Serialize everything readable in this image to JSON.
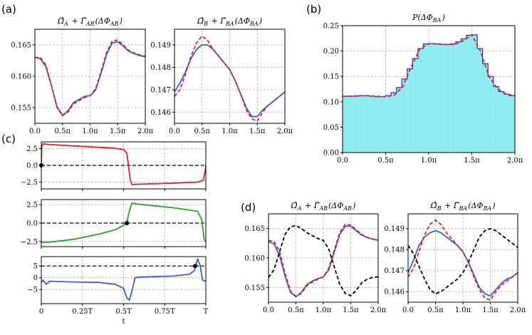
{
  "panel_labels": {
    "a": "(a)",
    "b": "(b)",
    "c": "(c)",
    "d": "(d)"
  },
  "colors": {
    "blue": "#3b5bdb",
    "red": "#e02020",
    "green": "#2ca02c",
    "black": "#000000",
    "cyan": "#8cecf0",
    "hist_edge": "#3030c0"
  },
  "chart_data": [
    {
      "id": "a1",
      "type": "line",
      "title": "Ω̂_A + Γ̂_AB(ΔΦ_AB)",
      "xlim": [
        0,
        2
      ],
      "ylim": [
        0.1525,
        0.1675
      ],
      "x_ticks": [
        0,
        0.5,
        1,
        1.5,
        2
      ],
      "x_tick_labels": [
        "0.0",
        "0.5π",
        "1.0π",
        "1.5π",
        "2.0π"
      ],
      "y_ticks": [
        0.155,
        0.16,
        0.165
      ],
      "y_tick_labels": [
        "0.155",
        "0.160",
        "0.165"
      ],
      "series": [
        {
          "name": "blue",
          "color": "#3b5bdb",
          "dash": "solid",
          "x": [
            0,
            0.1,
            0.2,
            0.3,
            0.4,
            0.5,
            0.6,
            0.7,
            0.8,
            0.9,
            1.0,
            1.1,
            1.2,
            1.3,
            1.4,
            1.5,
            1.6,
            1.7,
            1.8,
            1.9,
            2.0
          ],
          "y": [
            0.163,
            0.1628,
            0.1615,
            0.1585,
            0.1552,
            0.1538,
            0.1545,
            0.1558,
            0.1563,
            0.1568,
            0.1569,
            0.1578,
            0.1605,
            0.1635,
            0.1653,
            0.1655,
            0.1648,
            0.164,
            0.1636,
            0.1633,
            0.1631
          ]
        },
        {
          "name": "red dashed",
          "color": "#e02020",
          "dash": "dashed",
          "x": [
            0,
            0.1,
            0.2,
            0.3,
            0.4,
            0.5,
            0.6,
            0.7,
            0.8,
            0.9,
            1.0,
            1.1,
            1.2,
            1.3,
            1.4,
            1.5,
            1.6,
            1.7,
            1.8,
            1.9,
            2.0
          ],
          "y": [
            0.163,
            0.163,
            0.1618,
            0.1585,
            0.155,
            0.1537,
            0.1543,
            0.1556,
            0.1561,
            0.1566,
            0.1569,
            0.158,
            0.1608,
            0.1638,
            0.1656,
            0.1658,
            0.165,
            0.1641,
            0.1637,
            0.1634,
            0.1632
          ]
        }
      ]
    },
    {
      "id": "a2",
      "type": "line",
      "title": "Ω̂_B + Γ̂_BA(ΔΦ_BA)",
      "xlim": [
        0,
        2
      ],
      "ylim": [
        0.1455,
        0.1497
      ],
      "x_ticks": [
        0,
        0.5,
        1,
        1.5,
        2
      ],
      "x_tick_labels": [
        "0.0",
        "0.5π",
        "1.0π",
        "1.5π",
        "2.0π"
      ],
      "y_ticks": [
        0.146,
        0.147,
        0.148,
        0.149
      ],
      "y_tick_labels": [
        "0.146",
        "0.147",
        "0.148",
        "0.149"
      ],
      "series": [
        {
          "name": "blue",
          "color": "#3b5bdb",
          "dash": "solid",
          "x": [
            0,
            0.1,
            0.2,
            0.3,
            0.4,
            0.5,
            0.6,
            0.7,
            0.8,
            0.9,
            1.0,
            1.1,
            1.2,
            1.3,
            1.4,
            1.5,
            1.6,
            1.7,
            1.8,
            1.9,
            2.0
          ],
          "y": [
            0.1469,
            0.1473,
            0.1478,
            0.1484,
            0.1488,
            0.149,
            0.149,
            0.1488,
            0.1485,
            0.1482,
            0.1479,
            0.1474,
            0.1468,
            0.1462,
            0.1458,
            0.1458,
            0.1461,
            0.1463,
            0.1465,
            0.1467,
            0.1469
          ]
        },
        {
          "name": "red dashed",
          "color": "#e02020",
          "dash": "dashed",
          "x": [
            0,
            0.1,
            0.2,
            0.3,
            0.4,
            0.5,
            0.6,
            0.7,
            0.8,
            0.9,
            1.0,
            1.1,
            1.2,
            1.3,
            1.4,
            1.5,
            1.6,
            1.7,
            1.8,
            1.9,
            2.0
          ],
          "y": [
            0.1467,
            0.147,
            0.1477,
            0.1485,
            0.1491,
            0.1494,
            0.1492,
            0.1488,
            0.1485,
            0.1482,
            0.1479,
            0.1474,
            0.1468,
            0.1461,
            0.1457,
            0.1456,
            0.146,
            0.1463,
            0.1465,
            0.1467,
            0.1469
          ]
        }
      ]
    },
    {
      "id": "b",
      "type": "bar",
      "title": "P(ΔΦ_BA)",
      "xlim": [
        0,
        2
      ],
      "ylim": [
        0,
        0.25
      ],
      "x_ticks": [
        0,
        0.5,
        1,
        1.5,
        2
      ],
      "x_tick_labels": [
        "0.0",
        "0.5π",
        "1.0π",
        "1.5π",
        "2.0π"
      ],
      "y_ticks": [
        0,
        0.05,
        0.1,
        0.15,
        0.2,
        0.25
      ],
      "y_tick_labels": [
        "0.00",
        "0.05",
        "0.10",
        "0.15",
        "0.20",
        "0.25"
      ],
      "bin_width": 0.0625,
      "bin_values": [
        0.111,
        0.111,
        0.111,
        0.112,
        0.112,
        0.111,
        0.11,
        0.11,
        0.112,
        0.118,
        0.128,
        0.145,
        0.165,
        0.185,
        0.205,
        0.214,
        0.215,
        0.214,
        0.213,
        0.213,
        0.214,
        0.218,
        0.224,
        0.231,
        0.232,
        0.205,
        0.175,
        0.15,
        0.13,
        0.12,
        0.115,
        0.112
      ],
      "curve": {
        "color": "#e02020",
        "dash": "dashed",
        "x": [
          0,
          0.1,
          0.2,
          0.3,
          0.4,
          0.5,
          0.6,
          0.7,
          0.8,
          0.9,
          1.0,
          1.1,
          1.2,
          1.3,
          1.4,
          1.5,
          1.6,
          1.7,
          1.8,
          1.9,
          2.0
        ],
        "y": [
          0.111,
          0.111,
          0.112,
          0.112,
          0.111,
          0.11,
          0.113,
          0.13,
          0.17,
          0.205,
          0.214,
          0.214,
          0.213,
          0.213,
          0.22,
          0.232,
          0.2,
          0.15,
          0.125,
          0.115,
          0.112
        ]
      }
    },
    {
      "id": "c1",
      "type": "line",
      "xlim": [
        0,
        1
      ],
      "ylim": [
        -3.5,
        3.5
      ],
      "y_ticks": [
        -2.5,
        0,
        2.5
      ],
      "y_tick_labels": [
        "−2.5",
        "0.0",
        "2.5"
      ],
      "x_ticks": [
        0,
        0.25,
        0.5,
        0.75,
        1
      ],
      "series": [
        {
          "name": "red",
          "color": "#e02020",
          "dash": "solid",
          "x": [
            0,
            0.003,
            0.01,
            0.05,
            0.15,
            0.3,
            0.45,
            0.5,
            0.52,
            0.53,
            0.54,
            0.55,
            0.6,
            0.8,
            0.95,
            0.985,
            0.995,
            1.0
          ],
          "y": [
            0,
            2.8,
            3.2,
            3.1,
            2.95,
            2.75,
            2.55,
            2.35,
            1.8,
            0,
            -2.0,
            -2.85,
            -2.8,
            -2.65,
            -2.5,
            -2.2,
            -1.0,
            0
          ]
        }
      ],
      "hline": 0,
      "marker": {
        "x": 0,
        "y": 0
      }
    },
    {
      "id": "c2",
      "type": "line",
      "xlim": [
        0,
        1
      ],
      "ylim": [
        -3.2,
        3.2
      ],
      "y_ticks": [
        -2.5,
        0,
        2.5
      ],
      "y_tick_labels": [
        "−2.5",
        "0.0",
        "2.5"
      ],
      "x_ticks": [
        0,
        0.25,
        0.5,
        0.75,
        1
      ],
      "series": [
        {
          "name": "green",
          "color": "#2ca02c",
          "dash": "solid",
          "x": [
            0,
            0.05,
            0.2,
            0.35,
            0.45,
            0.5,
            0.52,
            0.53,
            0.55,
            0.6,
            0.8,
            0.95,
            0.975,
            0.99,
            1.0
          ],
          "y": [
            -2.6,
            -2.6,
            -2.2,
            -1.5,
            -0.9,
            -0.3,
            0,
            1.2,
            2.7,
            2.55,
            2.1,
            1.6,
            0.5,
            -2.2,
            -2.6
          ]
        }
      ],
      "hline": 0,
      "marker": {
        "x": 0.52,
        "y": 0
      }
    },
    {
      "id": "c3",
      "type": "line",
      "xlabel": "t",
      "xlim": [
        0,
        1
      ],
      "ylim": [
        -11,
        9
      ],
      "y_ticks": [
        -5,
        0,
        5
      ],
      "y_tick_labels": [
        "−5",
        "0",
        "5"
      ],
      "x_ticks": [
        0,
        0.25,
        0.5,
        0.75,
        1
      ],
      "x_tick_labels": [
        "0",
        "0.25T",
        "0.5T",
        "0.75T",
        "T"
      ],
      "series": [
        {
          "name": "blue",
          "color": "#3b5bdb",
          "dash": "solid",
          "x": [
            0,
            0.01,
            0.03,
            0.05,
            0.2,
            0.35,
            0.45,
            0.5,
            0.52,
            0.535,
            0.55,
            0.57,
            0.6,
            0.8,
            0.9,
            0.93,
            0.95,
            0.965,
            0.98,
            1.0
          ],
          "y": [
            -2.0,
            -1.0,
            -2.8,
            -1.5,
            -1.8,
            -2.0,
            -2.8,
            -4.5,
            -8.5,
            -9.5,
            -6.0,
            0.0,
            0.3,
            0.7,
            1.5,
            3.0,
            8.0,
            5.5,
            -1.0,
            -1.5
          ]
        }
      ],
      "hline": 5,
      "marker": {
        "x": 0.935,
        "y": 5
      }
    },
    {
      "id": "d1",
      "type": "line",
      "title": "Ω̂_A + Γ̂_AB(ΔΦ_AB)",
      "xlim": [
        0,
        2
      ],
      "ylim": [
        0.1525,
        0.1675
      ],
      "x_ticks": [
        0,
        0.5,
        1,
        1.5,
        2
      ],
      "x_tick_labels": [
        "0.0",
        "0.5π",
        "1.0π",
        "1.5π",
        "2.0π"
      ],
      "y_ticks": [
        0.155,
        0.16,
        0.165
      ],
      "y_tick_labels": [
        "0.155",
        "0.160",
        "0.165"
      ],
      "series": [
        {
          "name": "blue",
          "color": "#3b5bdb",
          "dash": "solid",
          "x": [
            0,
            0.1,
            0.2,
            0.3,
            0.4,
            0.5,
            0.6,
            0.7,
            0.8,
            0.9,
            1.0,
            1.1,
            1.2,
            1.3,
            1.4,
            1.5,
            1.6,
            1.7,
            1.8,
            1.9,
            2.0
          ],
          "y": [
            0.1628,
            0.1624,
            0.1605,
            0.157,
            0.1542,
            0.1534,
            0.1542,
            0.1555,
            0.1561,
            0.1565,
            0.1568,
            0.158,
            0.161,
            0.164,
            0.1654,
            0.1654,
            0.1646,
            0.1639,
            0.1635,
            0.1632,
            0.163
          ]
        },
        {
          "name": "red dashed",
          "color": "#e02020",
          "dash": "dashed",
          "x": [
            0,
            0.1,
            0.2,
            0.3,
            0.4,
            0.5,
            0.6,
            0.7,
            0.8,
            0.9,
            1.0,
            1.1,
            1.2,
            1.3,
            1.4,
            1.5,
            1.6,
            1.7,
            1.8,
            1.9,
            2.0
          ],
          "y": [
            0.163,
            0.1628,
            0.1612,
            0.1575,
            0.1544,
            0.1535,
            0.154,
            0.1553,
            0.1559,
            0.1564,
            0.1568,
            0.1583,
            0.1614,
            0.1643,
            0.1657,
            0.1656,
            0.1648,
            0.164,
            0.1635,
            0.1632,
            0.1631
          ]
        },
        {
          "name": "black dashed",
          "color": "#000000",
          "dash": "dashed",
          "x": [
            0,
            0.1,
            0.2,
            0.3,
            0.4,
            0.5,
            0.6,
            0.7,
            0.8,
            0.9,
            1.0,
            1.1,
            1.2,
            1.3,
            1.4,
            1.5,
            1.6,
            1.7,
            1.8,
            1.9,
            2.0
          ],
          "y": [
            0.1567,
            0.158,
            0.161,
            0.164,
            0.1653,
            0.1655,
            0.165,
            0.1643,
            0.1638,
            0.1633,
            0.163,
            0.1615,
            0.1585,
            0.1555,
            0.154,
            0.1536,
            0.1545,
            0.1558,
            0.1564,
            0.1567,
            0.1568
          ]
        }
      ]
    },
    {
      "id": "d2",
      "type": "line",
      "title": "Ω̂_B + Γ̂_BA(ΔΦ_BA)",
      "xlim": [
        0,
        2
      ],
      "ylim": [
        0.1455,
        0.1497
      ],
      "x_ticks": [
        0,
        0.5,
        1,
        1.5,
        2
      ],
      "x_tick_labels": [
        "0.0",
        "0.5π",
        "1.0π",
        "1.5π",
        "2.0π"
      ],
      "y_ticks": [
        0.146,
        0.147,
        0.148,
        0.149
      ],
      "y_tick_labels": [
        "0.146",
        "0.147",
        "0.148",
        "0.149"
      ],
      "series": [
        {
          "name": "blue",
          "color": "#3b5bdb",
          "dash": "solid",
          "x": [
            0,
            0.1,
            0.2,
            0.3,
            0.4,
            0.5,
            0.6,
            0.7,
            0.8,
            0.9,
            1.0,
            1.1,
            1.2,
            1.3,
            1.4,
            1.5,
            1.6,
            1.7,
            1.8,
            1.9,
            2.0
          ],
          "y": [
            0.1469,
            0.1475,
            0.1482,
            0.1486,
            0.1488,
            0.1489,
            0.1488,
            0.1486,
            0.1484,
            0.1482,
            0.1479,
            0.1474,
            0.1468,
            0.1462,
            0.1459,
            0.1458,
            0.1461,
            0.1464,
            0.1466,
            0.1467,
            0.1469
          ]
        },
        {
          "name": "red dashed",
          "color": "#e02020",
          "dash": "dashed",
          "x": [
            0,
            0.1,
            0.2,
            0.3,
            0.4,
            0.5,
            0.6,
            0.7,
            0.8,
            0.9,
            1.0,
            1.1,
            1.2,
            1.3,
            1.4,
            1.5,
            1.6,
            1.7,
            1.8,
            1.9,
            2.0
          ],
          "y": [
            0.1467,
            0.1471,
            0.1479,
            0.1487,
            0.1492,
            0.1494,
            0.1492,
            0.1488,
            0.1485,
            0.1482,
            0.1479,
            0.1474,
            0.1467,
            0.1461,
            0.1457,
            0.1456,
            0.146,
            0.1463,
            0.1465,
            0.1467,
            0.1469
          ]
        },
        {
          "name": "black dashed",
          "color": "#000000",
          "dash": "dashed",
          "x": [
            0,
            0.1,
            0.2,
            0.3,
            0.4,
            0.5,
            0.6,
            0.7,
            0.8,
            0.9,
            1.0,
            1.1,
            1.2,
            1.3,
            1.4,
            1.5,
            1.6,
            1.7,
            1.8,
            1.9,
            2.0
          ],
          "y": [
            0.1482,
            0.1478,
            0.1472,
            0.1466,
            0.1461,
            0.1459,
            0.146,
            0.1462,
            0.1464,
            0.1466,
            0.1469,
            0.1474,
            0.148,
            0.1486,
            0.1489,
            0.149,
            0.1489,
            0.1487,
            0.1485,
            0.1483,
            0.1481
          ]
        }
      ]
    }
  ]
}
